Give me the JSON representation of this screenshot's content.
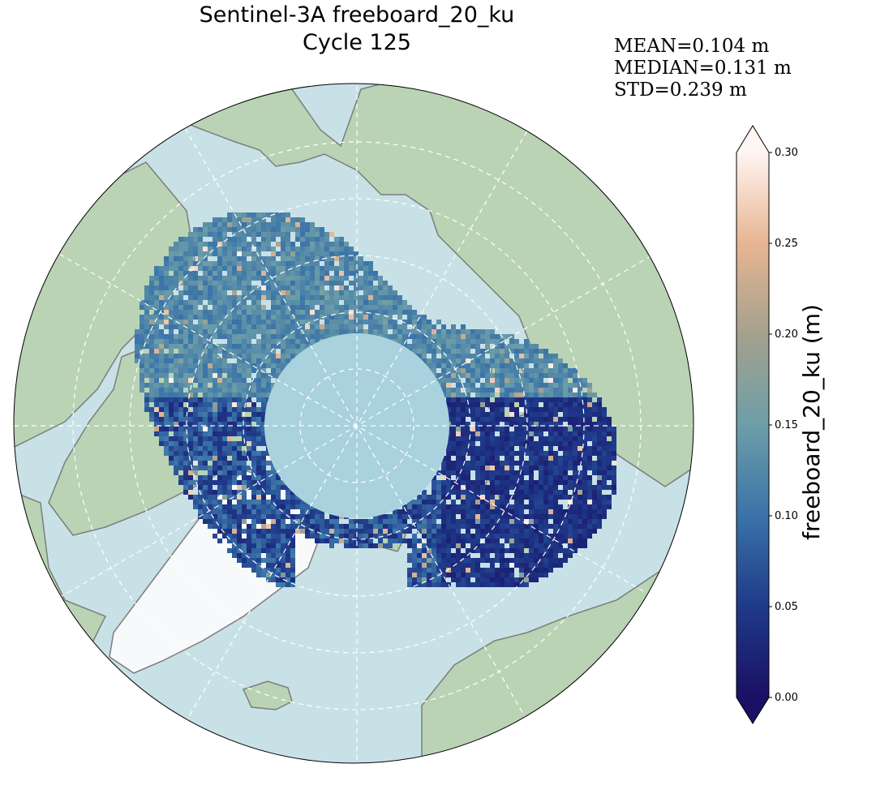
{
  "title": {
    "line1": "Sentinel-3A freeboard_20_ku",
    "line2": "Cycle 125"
  },
  "stats": {
    "mean": "MEAN=0.104 m",
    "median": "MEDIAN=0.131 m",
    "std": "STD=0.239 m"
  },
  "colorbar": {
    "label": "freeboard_20_ku (m)",
    "ticks": [
      "0.00",
      "0.05",
      "0.10",
      "0.15",
      "0.20",
      "0.25",
      "0.30"
    ],
    "vmin": 0.0,
    "vmax": 0.3,
    "extend": "both",
    "colormap_stops": [
      "#1a1064",
      "#1f3a8a",
      "#3a73a8",
      "#6d9ea8",
      "#a4a18e",
      "#e7b592",
      "#fff5f2"
    ]
  },
  "map": {
    "projection": "north-polar-stereographic",
    "ocean_color": "#c8e1e7",
    "land_color": "#b9d3b4",
    "ice_sheet_color": "#f7f9fa",
    "coastline_color": "#7d7d7d",
    "gridline_color": "#ffffff",
    "pole_hole_color": "#a9d2de"
  }
}
